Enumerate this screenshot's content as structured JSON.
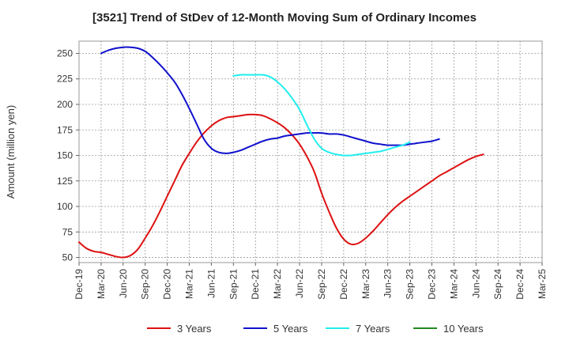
{
  "chart_data": {
    "type": "line",
    "title": "[3521]  Trend of StDev of 12-Month Moving Sum of Ordinary Incomes",
    "xlabel": "",
    "ylabel": "Amount (million yen)",
    "ylim": [
      45,
      262
    ],
    "yticks": [
      50,
      75,
      100,
      125,
      150,
      175,
      200,
      225,
      250
    ],
    "x_tick_labels": [
      "Dec-19",
      "Mar-20",
      "Jun-20",
      "Sep-20",
      "Dec-20",
      "Mar-21",
      "Jun-21",
      "Sep-21",
      "Dec-21",
      "Mar-22",
      "Jun-22",
      "Sep-22",
      "Dec-22",
      "Mar-23",
      "Jun-23",
      "Sep-23",
      "Dec-23",
      "Mar-24",
      "Jun-24",
      "Sep-24",
      "Dec-24",
      "Mar-25"
    ],
    "grid": true,
    "legend_position": "bottom",
    "series": [
      {
        "name": "3 Years",
        "color": "#dd1111",
        "points": [
          [
            "Dec-19",
            65
          ],
          [
            "Jan-20",
            59
          ],
          [
            "Feb-20",
            56
          ],
          [
            "Mar-20",
            55
          ],
          [
            "Apr-20",
            53
          ],
          [
            "May-20",
            51
          ],
          [
            "Jun-20",
            50
          ],
          [
            "Jul-20",
            52
          ],
          [
            "Aug-20",
            58
          ],
          [
            "Sep-20",
            69
          ],
          [
            "Oct-20",
            81
          ],
          [
            "Nov-20",
            95
          ],
          [
            "Dec-20",
            110
          ],
          [
            "Jan-21",
            125
          ],
          [
            "Feb-21",
            140
          ],
          [
            "Mar-21",
            152
          ],
          [
            "Apr-21",
            163
          ],
          [
            "May-21",
            172
          ],
          [
            "Jun-21",
            179
          ],
          [
            "Jul-21",
            184
          ],
          [
            "Aug-21",
            187
          ],
          [
            "Sep-21",
            188
          ],
          [
            "Oct-21",
            189
          ],
          [
            "Nov-21",
            190
          ],
          [
            "Dec-21",
            190
          ],
          [
            "Jan-22",
            189
          ],
          [
            "Feb-22",
            186
          ],
          [
            "Mar-22",
            182
          ],
          [
            "Apr-22",
            177
          ],
          [
            "May-22",
            170
          ],
          [
            "Jun-22",
            161
          ],
          [
            "Jul-22",
            149
          ],
          [
            "Aug-22",
            134
          ],
          [
            "Sep-22",
            113
          ],
          [
            "Oct-22",
            95
          ],
          [
            "Nov-22",
            79
          ],
          [
            "Dec-22",
            68
          ],
          [
            "Jan-23",
            63
          ],
          [
            "Feb-23",
            64
          ],
          [
            "Mar-23",
            69
          ],
          [
            "Apr-23",
            76
          ],
          [
            "May-23",
            84
          ],
          [
            "Jun-23",
            92
          ],
          [
            "Jul-23",
            99
          ],
          [
            "Aug-23",
            105
          ],
          [
            "Sep-23",
            110
          ],
          [
            "Oct-23",
            115
          ],
          [
            "Nov-23",
            120
          ],
          [
            "Dec-23",
            125
          ],
          [
            "Jan-24",
            130
          ],
          [
            "Feb-24",
            134
          ],
          [
            "Mar-24",
            138
          ],
          [
            "Apr-24",
            142
          ],
          [
            "May-24",
            146
          ],
          [
            "Jun-24",
            149
          ],
          [
            "Jul-24",
            151
          ]
        ]
      },
      {
        "name": "5 Years",
        "color": "#1111cc",
        "points": [
          [
            "Mar-20",
            250
          ],
          [
            "Apr-20",
            253
          ],
          [
            "May-20",
            255
          ],
          [
            "Jun-20",
            256
          ],
          [
            "Jul-20",
            256
          ],
          [
            "Aug-20",
            255
          ],
          [
            "Sep-20",
            252
          ],
          [
            "Oct-20",
            246
          ],
          [
            "Nov-20",
            239
          ],
          [
            "Dec-20",
            231
          ],
          [
            "Jan-21",
            222
          ],
          [
            "Feb-21",
            210
          ],
          [
            "Mar-21",
            196
          ],
          [
            "Apr-21",
            181
          ],
          [
            "May-21",
            166
          ],
          [
            "Jun-21",
            157
          ],
          [
            "Jul-21",
            153
          ],
          [
            "Aug-21",
            152
          ],
          [
            "Sep-21",
            153
          ],
          [
            "Oct-21",
            155
          ],
          [
            "Nov-21",
            158
          ],
          [
            "Dec-21",
            161
          ],
          [
            "Jan-22",
            164
          ],
          [
            "Feb-22",
            166
          ],
          [
            "Mar-22",
            167
          ],
          [
            "Apr-22",
            169
          ],
          [
            "May-22",
            170
          ],
          [
            "Jun-22",
            171
          ],
          [
            "Jul-22",
            172
          ],
          [
            "Aug-22",
            172
          ],
          [
            "Sep-22",
            172
          ],
          [
            "Oct-22",
            171
          ],
          [
            "Nov-22",
            171
          ],
          [
            "Dec-22",
            170
          ],
          [
            "Jan-23",
            168
          ],
          [
            "Feb-23",
            166
          ],
          [
            "Mar-23",
            164
          ],
          [
            "Apr-23",
            162
          ],
          [
            "May-23",
            161
          ],
          [
            "Jun-23",
            160
          ],
          [
            "Jul-23",
            160
          ],
          [
            "Aug-23",
            160
          ],
          [
            "Sep-23",
            161
          ],
          [
            "Oct-23",
            162
          ],
          [
            "Nov-23",
            163
          ],
          [
            "Dec-23",
            164
          ],
          [
            "Jan-24",
            166
          ]
        ]
      },
      {
        "name": "7 Years",
        "color": "#22eeee",
        "points": [
          [
            "Sep-21",
            228
          ],
          [
            "Oct-21",
            229
          ],
          [
            "Nov-21",
            229
          ],
          [
            "Dec-21",
            229
          ],
          [
            "Jan-22",
            229
          ],
          [
            "Feb-22",
            227
          ],
          [
            "Mar-22",
            222
          ],
          [
            "Apr-22",
            215
          ],
          [
            "May-22",
            206
          ],
          [
            "Jun-22",
            195
          ],
          [
            "Jul-22",
            180
          ],
          [
            "Aug-22",
            166
          ],
          [
            "Sep-22",
            157
          ],
          [
            "Oct-22",
            153
          ],
          [
            "Nov-22",
            151
          ],
          [
            "Dec-22",
            150
          ],
          [
            "Jan-23",
            150
          ],
          [
            "Feb-23",
            151
          ],
          [
            "Mar-23",
            152
          ],
          [
            "Apr-23",
            153
          ],
          [
            "May-23",
            154
          ],
          [
            "Jun-23",
            156
          ],
          [
            "Jul-23",
            158
          ],
          [
            "Aug-23",
            160
          ],
          [
            "Sep-23",
            163
          ]
        ]
      },
      {
        "name": "10 Years",
        "color": "#228822",
        "points": []
      }
    ]
  }
}
